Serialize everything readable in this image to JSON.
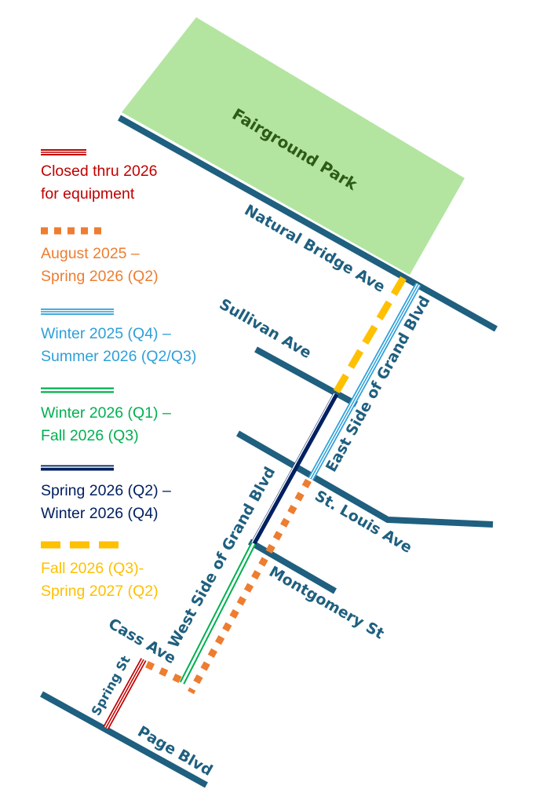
{
  "colors": {
    "street": "#1f5f7f",
    "park": "#b3e5a1",
    "park_label": "#2d5a17",
    "closed": "#c00000",
    "aug2025": "#ed7d31",
    "winter2025": "#2e9fd8",
    "winter2026": "#00b050",
    "spring2026": "#002060",
    "fall2026": "#ffc000"
  },
  "park": {
    "label": "Fairground Park"
  },
  "streets": {
    "natural_bridge": "Natural Bridge Ave",
    "sullivan": "Sullivan Ave",
    "east_grand": "East Side of Grand Blvd",
    "west_grand": "West Side of Grand Blvd",
    "st_louis": "St. Louis Ave",
    "montgomery": "Montgomery St",
    "cass": "Cass Ave",
    "spring": "Spring St",
    "page": "Page Blvd"
  },
  "legend": [
    {
      "line1": "Closed thru 2026",
      "line2": "for equipment",
      "style": "triple-line",
      "color": "#c00000"
    },
    {
      "line1": "August 2025 –",
      "line2": "Spring 2026 (Q2)",
      "style": "dotted",
      "color": "#ed7d31"
    },
    {
      "line1": "Winter 2025 (Q4) –",
      "line2": "Summer 2026 (Q2/Q3)",
      "style": "triple-line",
      "color": "#2e9fd8"
    },
    {
      "line1": "Winter 2026 (Q1) –",
      "line2": "Fall 2026 (Q3)",
      "style": "double-line",
      "color": "#00b050"
    },
    {
      "line1": "Spring 2026 (Q2) –",
      "line2": "Winter 2026 (Q4)",
      "style": "double-line",
      "color": "#002060"
    },
    {
      "line1": "Fall 2026 (Q3)-",
      "line2": "Spring 2027 (Q2)",
      "style": "dashed",
      "color": "#ffc000"
    }
  ]
}
